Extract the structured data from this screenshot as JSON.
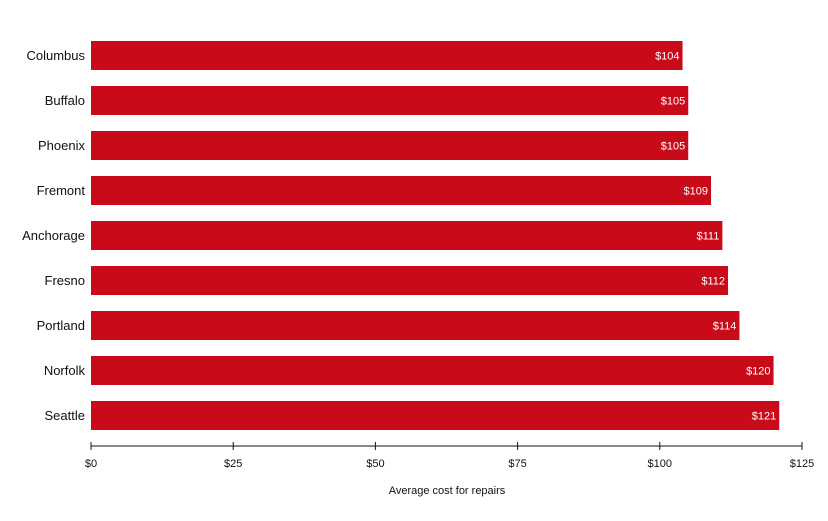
{
  "chart_data": {
    "type": "bar",
    "orientation": "horizontal",
    "categories": [
      "Columbus",
      "Buffalo",
      "Phoenix",
      "Fremont",
      "Anchorage",
      "Fresno",
      "Portland",
      "Norfolk",
      "Seattle"
    ],
    "values": [
      104,
      105,
      105,
      109,
      111,
      112,
      114,
      120,
      121
    ],
    "value_labels": [
      "$104",
      "$105",
      "$105",
      "$109",
      "$111",
      "$112",
      "$114",
      "$120",
      "$121"
    ],
    "xlabel": "Average cost for repairs",
    "ylabel": "",
    "xlim": [
      0,
      125
    ],
    "x_ticks": [
      0,
      25,
      50,
      75,
      100,
      125
    ],
    "x_tick_labels": [
      "$0",
      "$25",
      "$50",
      "$75",
      "$100",
      "$125"
    ],
    "bar_color": "#c80a19",
    "grid": false,
    "legend": "none"
  }
}
